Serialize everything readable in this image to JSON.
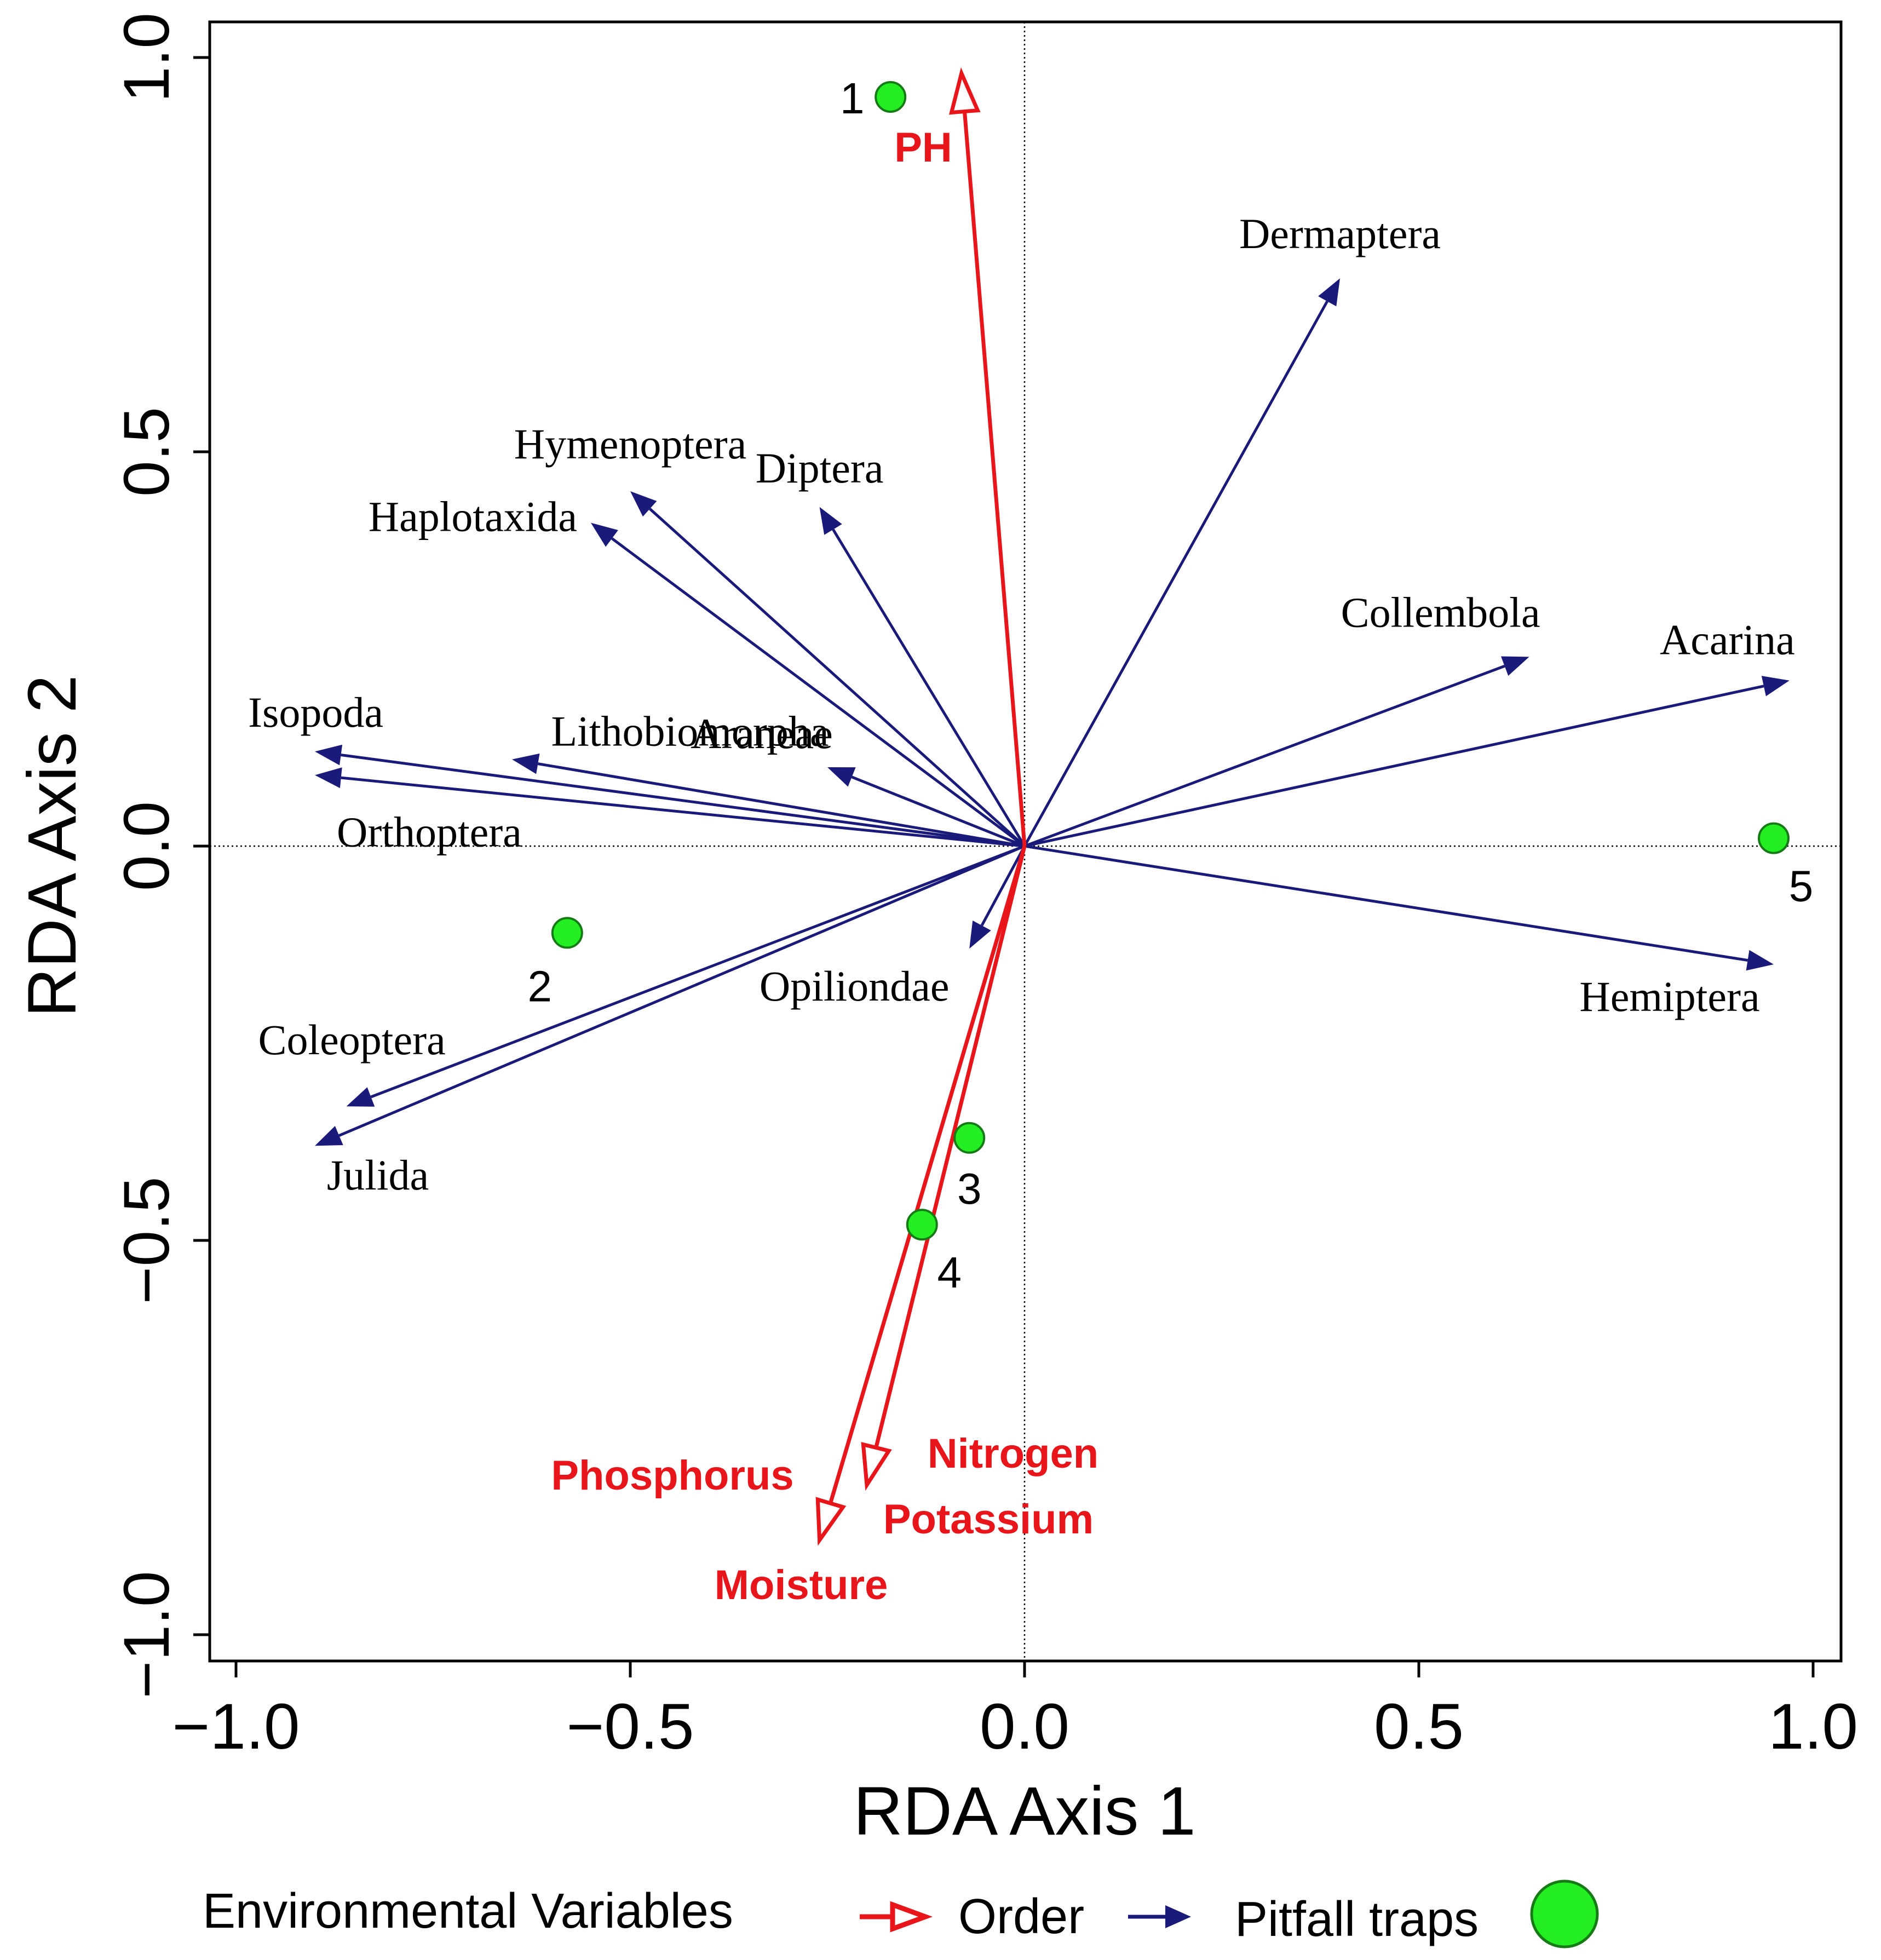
{
  "chart_data": {
    "type": "biplot",
    "title": "",
    "xlabel": "RDA Axis 1",
    "ylabel": "RDA Axis 2",
    "xlim": [
      -1.03,
      1.03
    ],
    "ylim": [
      -1.03,
      1.03
    ],
    "xticks": [
      {
        "value": -1.0,
        "label": "−1.0"
      },
      {
        "value": -0.5,
        "label": "−0.5"
      },
      {
        "value": 0.0,
        "label": "0.0"
      },
      {
        "value": 0.5,
        "label": "0.5"
      },
      {
        "value": 1.0,
        "label": "1.0"
      }
    ],
    "yticks": [
      {
        "value": -1.0,
        "label": "−1.0"
      },
      {
        "value": -0.5,
        "label": "−0.5"
      },
      {
        "value": 0.0,
        "label": "0.0"
      },
      {
        "value": 0.5,
        "label": "0.5"
      },
      {
        "value": 1.0,
        "label": "1.0"
      }
    ],
    "environmental_variables": [
      {
        "name": "PH",
        "x": -0.08,
        "y": 0.98
      },
      {
        "name": "Nitrogen",
        "x": -0.2,
        "y": -0.81
      },
      {
        "name": "Potassium",
        "x": -0.2,
        "y": -0.81
      },
      {
        "name": "Phosphorus",
        "x": -0.26,
        "y": -0.88
      },
      {
        "name": "Moisture",
        "x": -0.26,
        "y": -0.88
      }
    ],
    "orders": [
      {
        "name": "Dermaptera",
        "x": 0.4,
        "y": 0.72
      },
      {
        "name": "Hymenoptera",
        "x": -0.5,
        "y": 0.45
      },
      {
        "name": "Diptera",
        "x": -0.26,
        "y": 0.43
      },
      {
        "name": "Haplotaxida",
        "x": -0.55,
        "y": 0.41
      },
      {
        "name": "Collembola",
        "x": 0.64,
        "y": 0.24
      },
      {
        "name": "Acarina",
        "x": 0.97,
        "y": 0.21
      },
      {
        "name": "Isopoda",
        "x": -0.9,
        "y": 0.12
      },
      {
        "name": "Lithobiomorpha",
        "x": -0.65,
        "y": 0.11
      },
      {
        "name": "Araneae",
        "x": -0.25,
        "y": 0.1
      },
      {
        "name": "Orthoptera",
        "x": -0.9,
        "y": 0.09
      },
      {
        "name": "Opiliondae",
        "x": -0.07,
        "y": -0.13
      },
      {
        "name": "Hemiptera",
        "x": 0.95,
        "y": -0.15
      },
      {
        "name": "Coleoptera",
        "x": -0.86,
        "y": -0.33
      },
      {
        "name": "Julida",
        "x": -0.9,
        "y": -0.38
      }
    ],
    "pitfall_traps": [
      {
        "label": "1",
        "x": -0.17,
        "y": 0.95
      },
      {
        "label": "2",
        "x": -0.58,
        "y": -0.11
      },
      {
        "label": "3",
        "x": -0.07,
        "y": -0.37
      },
      {
        "label": "4",
        "x": -0.13,
        "y": -0.48
      },
      {
        "label": "5",
        "x": 0.95,
        "y": 0.01
      }
    ],
    "legend": {
      "position": "bottom",
      "title": "Environmental Variables",
      "items": [
        {
          "label": "Order",
          "symbol": "open-red-arrow"
        },
        {
          "label": "Pitfall traps",
          "symbol": "green-circle"
        }
      ]
    },
    "colors": {
      "environmental": "#e8151b",
      "order": "#1a1a7a",
      "trap_fill": "#22ee22",
      "trap_stroke": "#167a16"
    }
  }
}
